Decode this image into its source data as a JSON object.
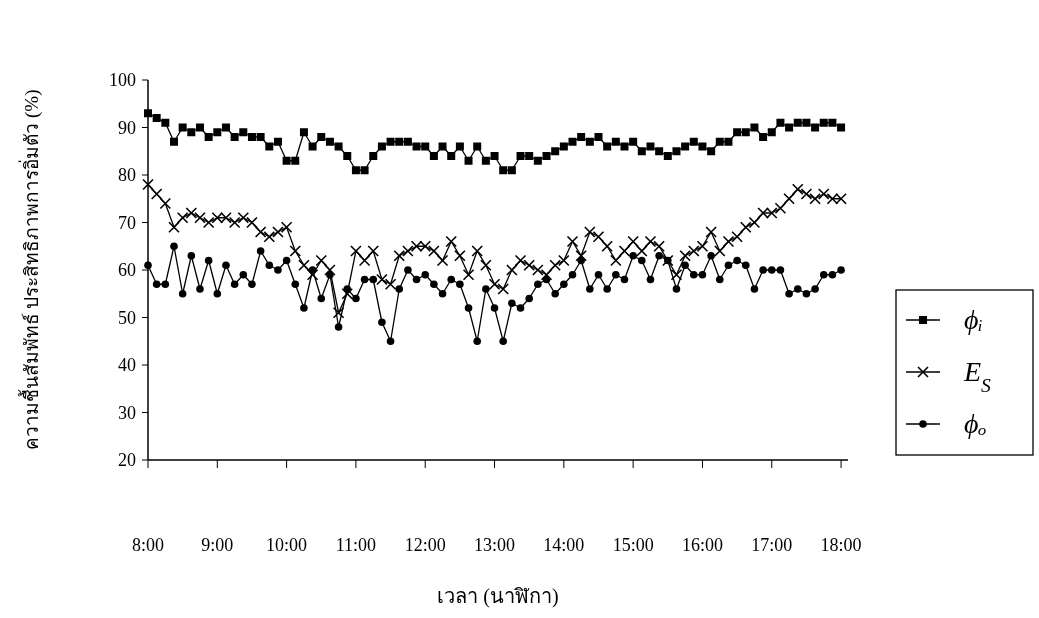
{
  "chart_data": {
    "type": "line",
    "xlabel": "เวลา (นาฬิกา)",
    "ylabel": "ความชื้นสัมพัทธ์ ประสิทธิภาพการอิ่มตัว (%)",
    "x": [
      8.0,
      8.125,
      8.25,
      8.375,
      8.5,
      8.625,
      8.75,
      8.875,
      9.0,
      9.125,
      9.25,
      9.375,
      9.5,
      9.625,
      9.75,
      9.875,
      10.0,
      10.125,
      10.25,
      10.375,
      10.5,
      10.625,
      10.75,
      10.875,
      11.0,
      11.125,
      11.25,
      11.375,
      11.5,
      11.625,
      11.75,
      11.875,
      12.0,
      12.125,
      12.25,
      12.375,
      12.5,
      12.625,
      12.75,
      12.875,
      13.0,
      13.125,
      13.25,
      13.375,
      13.5,
      13.625,
      13.75,
      13.875,
      14.0,
      14.125,
      14.25,
      14.375,
      14.5,
      14.625,
      14.75,
      14.875,
      15.0,
      15.125,
      15.25,
      15.375,
      15.5,
      15.625,
      15.75,
      15.875,
      16.0,
      16.125,
      16.25,
      16.375,
      16.5,
      16.625,
      16.75,
      16.875,
      17.0,
      17.125,
      17.25,
      17.375,
      17.5,
      17.625,
      17.75,
      17.875,
      18.0
    ],
    "series": [
      {
        "name": "ϕᵢ",
        "color": "#000000",
        "marker": "square",
        "values": [
          93,
          92,
          91,
          87,
          90,
          89,
          90,
          88,
          89,
          90,
          88,
          89,
          88,
          88,
          86,
          87,
          83,
          83,
          89,
          86,
          88,
          87,
          86,
          84,
          81,
          81,
          84,
          86,
          87,
          87,
          87,
          86,
          86,
          84,
          86,
          84,
          86,
          83,
          86,
          83,
          84,
          81,
          81,
          84,
          84,
          83,
          84,
          85,
          86,
          87,
          88,
          87,
          88,
          86,
          87,
          86,
          87,
          85,
          86,
          85,
          84,
          85,
          86,
          87,
          86,
          85,
          87,
          87,
          89,
          89,
          90,
          88,
          89,
          91,
          90,
          91,
          91,
          90,
          91,
          91,
          90
        ]
      },
      {
        "name": "E$_{S}$",
        "color": "#000000",
        "marker": "cross",
        "values": [
          78,
          76,
          74,
          69,
          71,
          72,
          71,
          70,
          71,
          71,
          70,
          71,
          70,
          68,
          67,
          68,
          69,
          64,
          61,
          59,
          62,
          60,
          51,
          55,
          64,
          62,
          64,
          58,
          57,
          63,
          64,
          65,
          65,
          64,
          62,
          66,
          63,
          59,
          64,
          61,
          57,
          56,
          60,
          62,
          61,
          60,
          59,
          61,
          62,
          66,
          63,
          68,
          67,
          65,
          62,
          64,
          66,
          64,
          66,
          65,
          62,
          59,
          63,
          64,
          65,
          68,
          64,
          66,
          67,
          69,
          70,
          72,
          72,
          73,
          75,
          77,
          76,
          75,
          76,
          75,
          75
        ]
      },
      {
        "name": "ϕₒ",
        "color": "#000000",
        "marker": "circle",
        "values": [
          61,
          57,
          57,
          65,
          55,
          63,
          56,
          62,
          55,
          61,
          57,
          59,
          57,
          64,
          61,
          60,
          62,
          57,
          52,
          60,
          54,
          59,
          48,
          56,
          54,
          58,
          58,
          49,
          45,
          56,
          60,
          58,
          59,
          57,
          55,
          58,
          57,
          52,
          45,
          56,
          52,
          45,
          53,
          52,
          54,
          57,
          58,
          55,
          57,
          59,
          62,
          56,
          59,
          56,
          59,
          58,
          63,
          62,
          58,
          63,
          62,
          56,
          61,
          59,
          59,
          63,
          58,
          61,
          62,
          61,
          56,
          60,
          60,
          60,
          55,
          56,
          55,
          56,
          59,
          59,
          60
        ]
      }
    ],
    "xlim": [
      8,
      18.1
    ],
    "xticks": [
      {
        "value": 8,
        "label": "8:00"
      },
      {
        "value": 9,
        "label": "9:00"
      },
      {
        "value": 10,
        "label": "10:00"
      },
      {
        "value": 11,
        "label": "11:00"
      },
      {
        "value": 12,
        "label": "12:00"
      },
      {
        "value": 13,
        "label": "13:00"
      },
      {
        "value": 14,
        "label": "14:00"
      },
      {
        "value": 15,
        "label": "15:00"
      },
      {
        "value": 16,
        "label": "16:00"
      },
      {
        "value": 17,
        "label": "17:00"
      },
      {
        "value": 18,
        "label": "18:00"
      }
    ],
    "ylim": [
      20,
      100
    ],
    "yticks": [
      20,
      30,
      40,
      50,
      60,
      70,
      80,
      90,
      100
    ],
    "legend": "right",
    "grid": false,
    "line_style": "solid"
  }
}
